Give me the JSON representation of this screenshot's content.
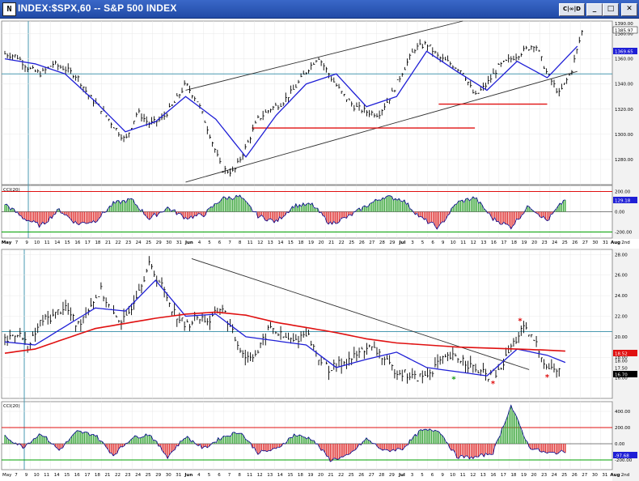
{
  "window": {
    "title": "INDEX:$SPX,60 -- S&P 500 INDEX",
    "icon_label": "N",
    "buttons": {
      "chart": "C|∞|D",
      "minimize": "_",
      "maximize": "□",
      "close": "✕"
    }
  },
  "colors": {
    "background": "#ffffff",
    "grid": "#e8e8e8",
    "bar": "#000000",
    "ma_short": "#1f1fd6",
    "ma_long": "#e01010",
    "trend": "#303030",
    "support": "#e01010",
    "cci_pos": "#3aa63a",
    "cci_neg": "#e03030",
    "cci_hi": "#e01010",
    "cci_lo": "#00a000",
    "crosshair": "#4a9ab0"
  },
  "chart_data": [
    {
      "type": "line",
      "panel": "price",
      "symbol": "$SPX",
      "ylim": [
        1260,
        1390
      ],
      "yticks": [
        1280,
        1300,
        1320,
        1340,
        1360,
        1380
      ],
      "xlim": [
        0,
        1
      ],
      "series": [
        {
          "name": "",
          "style": "ohlc",
          "x": [
            0,
            0.02,
            0.04,
            0.06,
            0.08,
            0.1,
            0.12,
            0.14,
            0.16,
            0.18,
            0.2,
            0.22,
            0.24,
            0.26,
            0.28,
            0.3,
            0.32,
            0.34,
            0.36,
            0.38,
            0.4,
            0.42,
            0.44,
            0.46,
            0.48,
            0.5,
            0.52,
            0.54,
            0.56,
            0.58,
            0.6,
            0.62,
            0.64,
            0.66,
            0.68,
            0.7,
            0.72,
            0.74,
            0.76,
            0.78,
            0.8,
            0.82,
            0.84,
            0.86,
            0.88,
            0.9,
            0.92,
            0.94,
            0.96
          ],
          "values": [
            1364,
            1362,
            1352,
            1348,
            1356,
            1352,
            1346,
            1330,
            1320,
            1307,
            1295,
            1318,
            1308,
            1312,
            1324,
            1340,
            1326,
            1300,
            1272,
            1270,
            1290,
            1312,
            1320,
            1325,
            1336,
            1350,
            1362,
            1346,
            1332,
            1322,
            1318,
            1316,
            1330,
            1350,
            1368,
            1372,
            1361,
            1356,
            1350,
            1330,
            1340,
            1354,
            1360,
            1366,
            1372,
            1348,
            1332,
            1350,
            1386
          ]
        },
        {
          "name": "",
          "style": "ma",
          "x": [
            0,
            0.05,
            0.1,
            0.15,
            0.2,
            0.25,
            0.3,
            0.35,
            0.4,
            0.45,
            0.5,
            0.55,
            0.6,
            0.65,
            0.7,
            0.75,
            0.8,
            0.85,
            0.9,
            0.95
          ],
          "values": [
            1360,
            1356,
            1348,
            1326,
            1302,
            1310,
            1330,
            1312,
            1282,
            1315,
            1340,
            1348,
            1322,
            1330,
            1366,
            1350,
            1335,
            1358,
            1345,
            1370
          ]
        }
      ],
      "lines": [
        {
          "kind": "channel-top",
          "x": [
            0.3,
            0.76
          ],
          "y": [
            1335,
            1390
          ]
        },
        {
          "kind": "channel-bottom",
          "x": [
            0.3,
            0.95
          ],
          "y": [
            1262,
            1350
          ]
        },
        {
          "kind": "support",
          "x": [
            0.41,
            0.78
          ],
          "y": [
            1305,
            1305
          ]
        },
        {
          "kind": "support",
          "x": [
            0.72,
            0.9
          ],
          "y": [
            1324,
            1324
          ]
        }
      ],
      "labels": [
        "1390.00",
        "1385.97",
        "1369.65"
      ],
      "crosshair_y": 1348
    },
    {
      "type": "area",
      "panel": "cci-upper",
      "indicator": "CCI(20)",
      "ylim": [
        -260,
        260
      ],
      "yticks": [
        200,
        0,
        -200
      ],
      "ytick_labels": [
        "200.00",
        "0.00",
        "-200.00"
      ],
      "last_label": "129.18",
      "x": [
        0,
        0.03,
        0.06,
        0.09,
        0.12,
        0.15,
        0.18,
        0.21,
        0.24,
        0.27,
        0.3,
        0.33,
        0.36,
        0.39,
        0.42,
        0.45,
        0.48,
        0.51,
        0.54,
        0.57,
        0.6,
        0.63,
        0.66,
        0.69,
        0.72,
        0.75,
        0.78,
        0.81,
        0.84,
        0.87,
        0.9,
        0.93
      ],
      "values": [
        80,
        -60,
        -140,
        20,
        -120,
        -90,
        80,
        120,
        -70,
        40,
        -60,
        -30,
        130,
        150,
        -40,
        -100,
        60,
        70,
        -120,
        -50,
        60,
        150,
        120,
        -60,
        -160,
        90,
        140,
        -70,
        -150,
        60,
        -90,
        129
      ]
    },
    {
      "type": "line",
      "panel": "lower",
      "ylim": [
        14,
        28.5
      ],
      "yticks": [
        16,
        18,
        20,
        22,
        24,
        26,
        28
      ],
      "ytick_labels": [
        "16.00",
        "18.00",
        "20.00",
        "22.00",
        "24.00",
        "26.00",
        "28.00"
      ],
      "series": [
        {
          "name": "",
          "style": "ohlc",
          "x": [
            0,
            0.02,
            0.04,
            0.06,
            0.08,
            0.1,
            0.12,
            0.14,
            0.16,
            0.18,
            0.2,
            0.22,
            0.24,
            0.26,
            0.28,
            0.3,
            0.32,
            0.34,
            0.36,
            0.38,
            0.4,
            0.42,
            0.44,
            0.46,
            0.48,
            0.5,
            0.52,
            0.54,
            0.56,
            0.58,
            0.6,
            0.62,
            0.64,
            0.66,
            0.68,
            0.7,
            0.72,
            0.74,
            0.76,
            0.78,
            0.8,
            0.82,
            0.84,
            0.86,
            0.88,
            0.9,
            0.92
          ],
          "values": [
            19.5,
            20.5,
            19,
            21.5,
            22,
            23,
            21,
            23,
            24.5,
            22,
            21.5,
            24.5,
            27,
            25,
            22.5,
            21,
            22,
            21.5,
            23,
            20,
            18,
            18.5,
            21,
            20,
            19.5,
            20.5,
            18,
            16.8,
            17.5,
            18,
            19,
            18.5,
            17,
            16.5,
            16,
            16.2,
            17.5,
            18,
            17.8,
            16.8,
            16.2,
            16.5,
            19,
            20.8,
            19.5,
            17,
            16.7
          ]
        },
        {
          "name": "",
          "style": "ma",
          "x": [
            0,
            0.05,
            0.1,
            0.15,
            0.2,
            0.25,
            0.3,
            0.35,
            0.4,
            0.45,
            0.5,
            0.55,
            0.6,
            0.65,
            0.7,
            0.75,
            0.8,
            0.85,
            0.9,
            0.93
          ],
          "values": [
            19.5,
            19.2,
            21,
            22.8,
            22.5,
            25.5,
            22,
            22.2,
            20,
            19.6,
            19.2,
            17,
            17.8,
            18.5,
            17,
            16.6,
            16.2,
            18.8,
            18.2,
            17.5
          ]
        },
        {
          "name": "",
          "style": "ma-long",
          "x": [
            0,
            0.05,
            0.1,
            0.15,
            0.2,
            0.25,
            0.3,
            0.35,
            0.4,
            0.45,
            0.5,
            0.55,
            0.6,
            0.65,
            0.7,
            0.75,
            0.8,
            0.85,
            0.9,
            0.93
          ],
          "values": [
            18.4,
            18.8,
            19.8,
            20.8,
            21.3,
            21.8,
            22.2,
            22.4,
            22.1,
            21.4,
            20.9,
            20.4,
            19.8,
            19.4,
            19.2,
            19.0,
            18.9,
            18.8,
            18.7,
            18.6
          ]
        }
      ],
      "lines": [
        {
          "kind": "downtrend",
          "x": [
            0.31,
            0.87
          ],
          "y": [
            27.6,
            16.8
          ]
        }
      ],
      "markers": [
        {
          "x": 0.745,
          "y": 15.6,
          "color": "green"
        },
        {
          "x": 0.81,
          "y": 15.2,
          "color": "red"
        },
        {
          "x": 0.855,
          "y": 21.3,
          "color": "red"
        },
        {
          "x": 0.9,
          "y": 15.8,
          "color": "red"
        }
      ],
      "labels": [
        "18.52",
        "18.00",
        "17.50",
        "16.70"
      ],
      "crosshair_y": 20.5
    },
    {
      "type": "area",
      "panel": "cci-lower",
      "indicator": "CCI(20)",
      "ylim": [
        -320,
        520
      ],
      "yticks": [
        400,
        200,
        0,
        -200
      ],
      "ytick_labels": [
        "400.00",
        "200.00",
        "0.00",
        "-200.00"
      ],
      "last_label": "-97.68",
      "x": [
        0,
        0.03,
        0.06,
        0.09,
        0.12,
        0.15,
        0.18,
        0.21,
        0.24,
        0.27,
        0.3,
        0.33,
        0.36,
        0.39,
        0.42,
        0.45,
        0.48,
        0.51,
        0.54,
        0.57,
        0.6,
        0.63,
        0.66,
        0.69,
        0.72,
        0.75,
        0.78,
        0.81,
        0.84,
        0.87,
        0.9,
        0.93
      ],
      "values": [
        90,
        -40,
        130,
        -80,
        150,
        110,
        -140,
        70,
        120,
        -160,
        90,
        -60,
        80,
        150,
        -110,
        -70,
        110,
        60,
        -200,
        -150,
        60,
        -90,
        -60,
        160,
        170,
        -160,
        -170,
        -110,
        470,
        -40,
        -120,
        -98
      ]
    }
  ],
  "time_axis": {
    "upper": [
      "May",
      "7",
      "9",
      "10",
      "11",
      "14",
      "15",
      "16",
      "17",
      "18",
      "21",
      "22",
      "23",
      "24",
      "25",
      "29",
      "30",
      "31",
      "Jun",
      "4",
      "5",
      "6",
      "7",
      "8",
      "11",
      "12",
      "13",
      "14",
      "15",
      "18",
      "19",
      "20",
      "21",
      "22",
      "25",
      "26",
      "27",
      "28",
      "29",
      "Jul",
      "3",
      "5",
      "6",
      "9",
      "10",
      "11",
      "12",
      "13",
      "16",
      "17",
      "18",
      "19",
      "20",
      "23",
      "24",
      "25",
      "26",
      "27",
      "30",
      "31",
      "Aug",
      "2nd"
    ],
    "lower": [
      "7",
      "9",
      "10",
      "11",
      "14",
      "15",
      "16",
      "17",
      "18",
      "21",
      "22",
      "23",
      "24",
      "25",
      "29",
      "30",
      "31",
      "Jun",
      "4",
      "5",
      "6",
      "7",
      "8",
      "11",
      "12",
      "13",
      "14",
      "15",
      "18",
      "19",
      "20",
      "21",
      "22",
      "25",
      "26",
      "27",
      "28",
      "29",
      "Jul",
      "3",
      "5",
      "6",
      "9",
      "10",
      "11",
      "12",
      "13",
      "16",
      "17",
      "18",
      "19",
      "20",
      "23",
      "24",
      "25",
      "26",
      "27",
      "30",
      "31",
      "Aug",
      "2nd"
    ],
    "lower_start": "May"
  },
  "panel_labels": {
    "cci_upper": "CCI(20)",
    "cci_lower": "CCI(20)"
  }
}
